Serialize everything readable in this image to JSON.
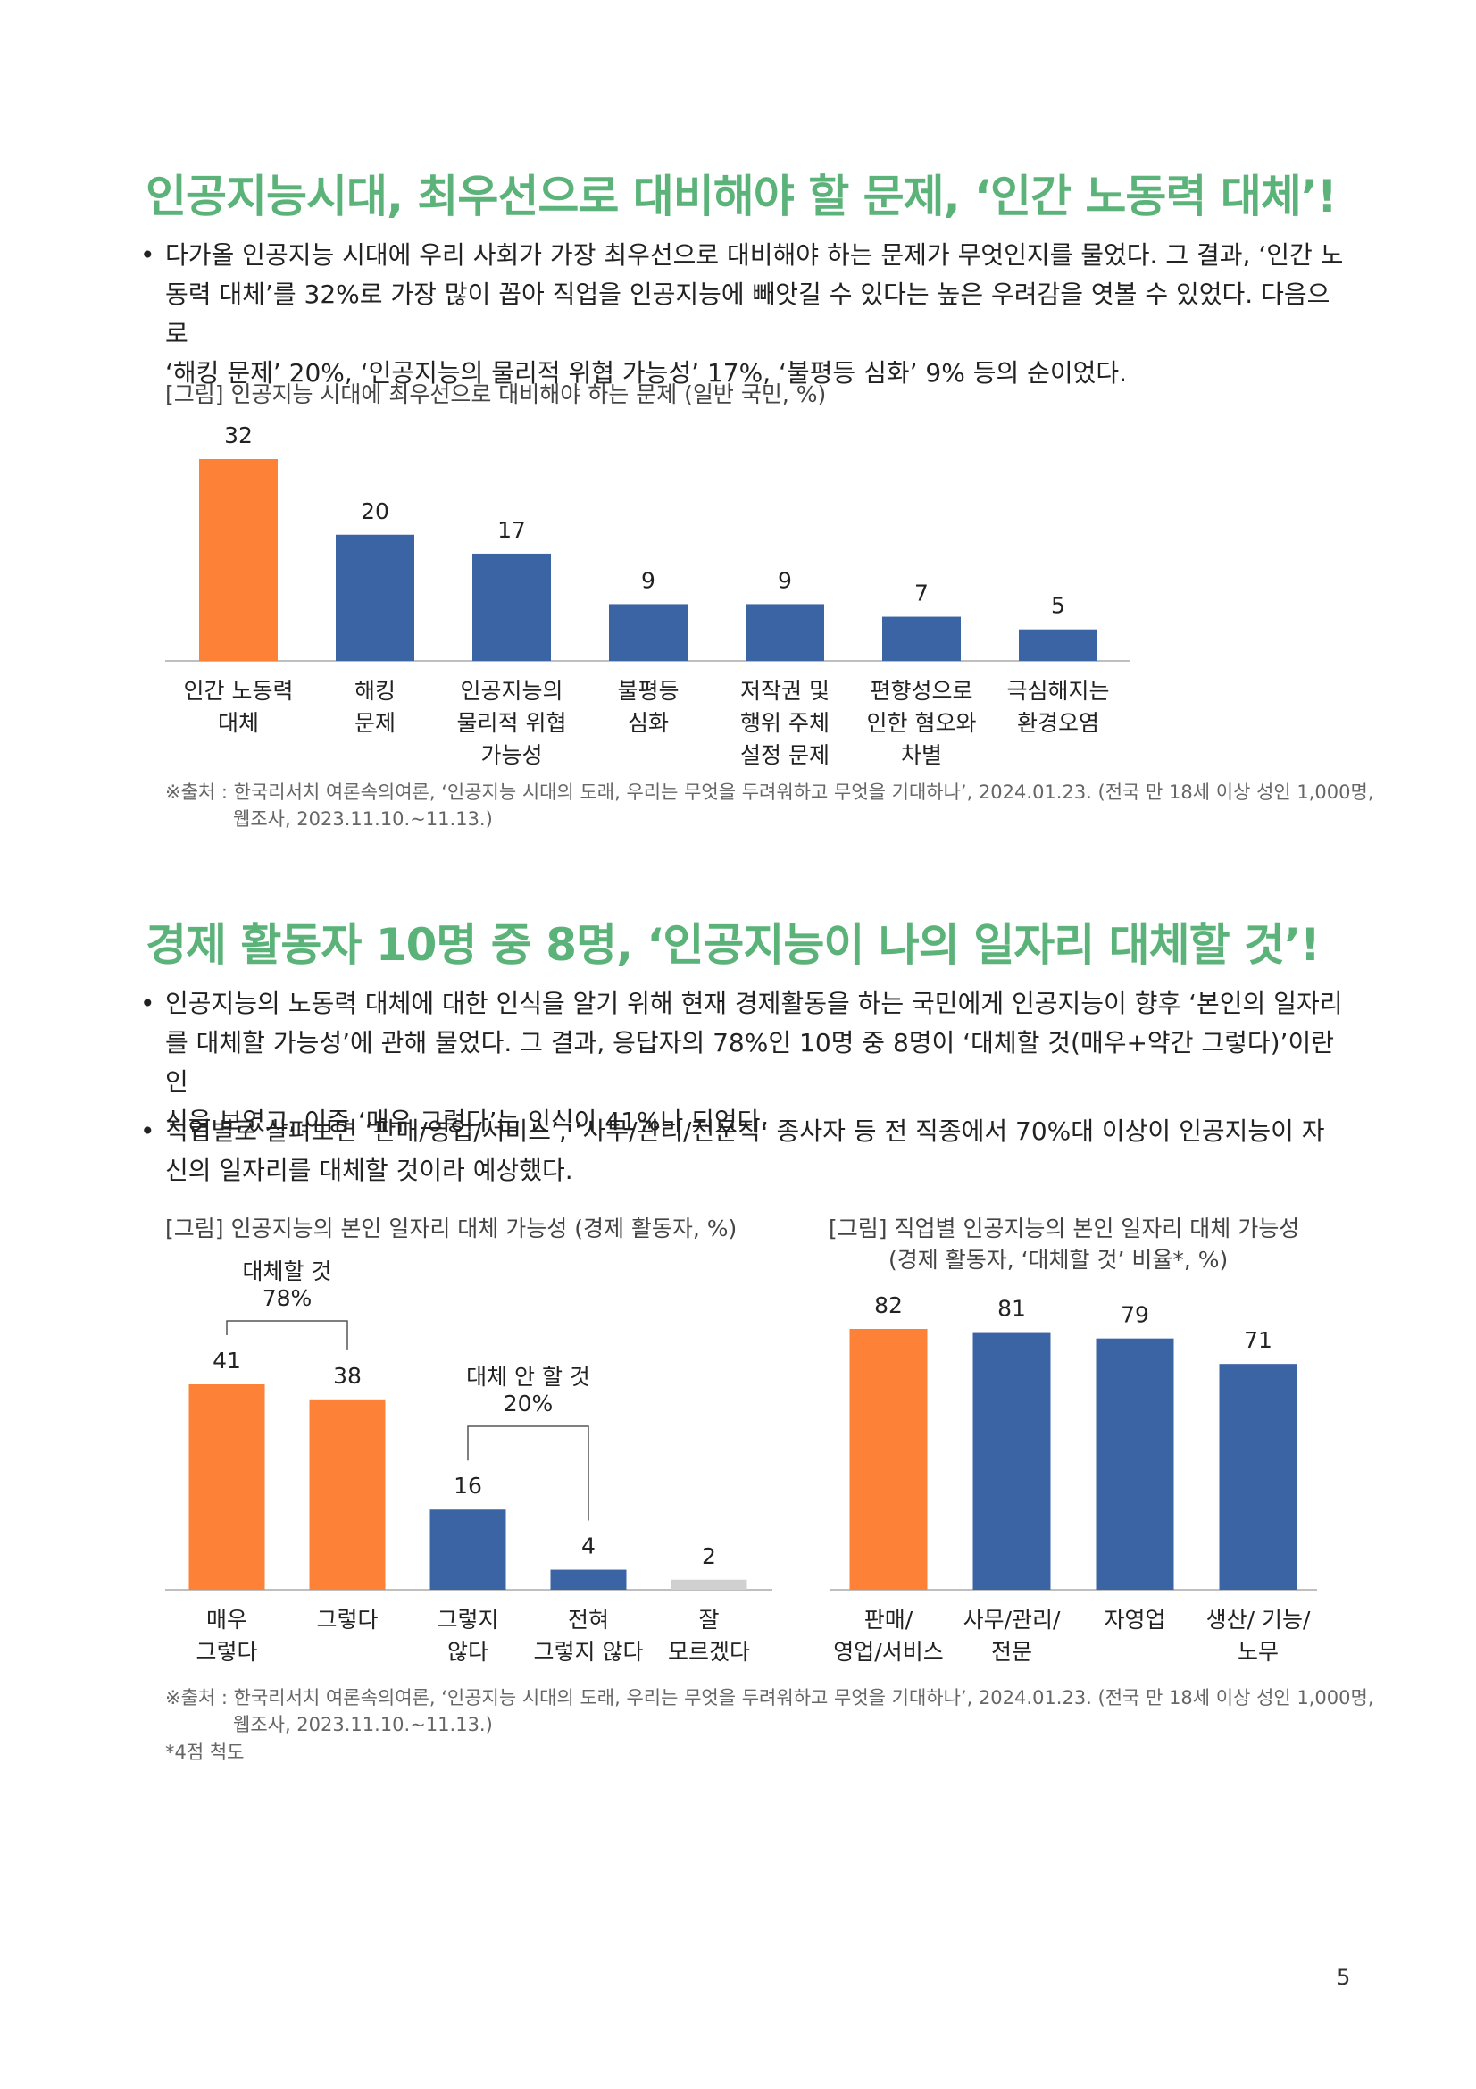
{
  "section1": {
    "title": "인공지능시대, 최우선으로 대비해야 할 문제, ‘인간 노동력 대체’!",
    "bullet_lines": [
      "다가올 인공지능 시대에 우리 사회가 가장 최우선으로 대비해야 하는 문제가 무엇인지를 물었다. 그 결과, ‘인간 노",
      "동력 대체’를 32%로 가장 많이 꼽아 직업을 인공지능에 빼앗길 수 있다는 높은 우려감을 엿볼 수 있었다. 다음으로",
      "‘해킹 문제’ 20%, ‘인공지능의 물리적 위협 가능성’ 17%, ‘불평등 심화’ 9% 등의 순이었다."
    ],
    "figure_caption": "[그림] 인공지능 시대에 최우선으로 대비해야 하는 문제 (일반 국민, %)",
    "source_line1": "※출처 : 한국리서치 여론속의여론, ‘인공지능 시대의 도래, 우리는 무엇을 두려워하고 무엇을 기대하나’, 2024.01.23. (전국 만 18세 이상 성인 1,000명,",
    "source_line2": "웹조사, 2023.11.10.~11.13.)"
  },
  "section2": {
    "title": "경제 활동자 10명 중 8명, ‘인공지능이 나의 일자리 대체할 것’!",
    "bullet1_lines": [
      "인공지능의 노동력 대체에 대한 인식을 알기 위해 현재 경제활동을 하는 국민에게 인공지능이 향후 ‘본인의 일자리",
      "를 대체할 가능성’에 관해 물었다. 그 결과, 응답자의 78%인 10명 중 8명이 ‘대체할 것(매우+약간 그렇다)’이란 인",
      "식을 보였고, 이중 ‘매우 그렇다’는 인식이 41%나 되었다."
    ],
    "bullet2_lines": [
      "직업별로 살펴보면 ‘판매/영업/서비스’, ‘사무/관리/전문직’ 종사자 등 전 직종에서 70%대 이상이 인공지능이 자",
      "신의 일자리를 대체할 것이라 예상했다."
    ],
    "figure_caption_left": "[그림] 인공지능의 본인 일자리 대체 가능성 (경제 활동자, %)",
    "figure_caption_right_line1": "[그림] 직업별 인공지능의 본인 일자리 대체 가능성",
    "figure_caption_right_line2": "(경제 활동자, ‘대체할 것’ 비율*, %)",
    "source_line1": "※출처 : 한국리서치 여론속의여론, ‘인공지능 시대의 도래, 우리는 무엇을 두려워하고 무엇을 기대하나’, 2024.01.23. (전국 만 18세 이상 성인 1,000명,",
    "source_line2": "웹조사, 2023.11.10.~11.13.)",
    "footnote": "*4점 척도"
  },
  "page_number": "5",
  "colors": {
    "orange": "#fd8136",
    "blue": "#3b64a4",
    "gray": "#d0d0d0",
    "title_green": "#5bb37a"
  },
  "chart_data": [
    {
      "type": "bar",
      "categories": [
        [
          "인간 노동력",
          "대체"
        ],
        [
          "해킹",
          "문제"
        ],
        [
          "인공지능의",
          "물리적 위협",
          "가능성"
        ],
        [
          "불평등",
          "심화"
        ],
        [
          "저작권 및",
          "행위 주체",
          "설정 문제"
        ],
        [
          "편향성으로",
          "인한 혐오와",
          "차별"
        ],
        [
          "극심해지는",
          "환경오염"
        ]
      ],
      "values": [
        32,
        20,
        17,
        9,
        9,
        7,
        5
      ],
      "bar_colors": [
        "#fd8136",
        "#3b64a4",
        "#3b64a4",
        "#3b64a4",
        "#3b64a4",
        "#3b64a4",
        "#3b64a4"
      ],
      "ylim": [
        0,
        32
      ]
    },
    {
      "type": "bar",
      "categories": [
        [
          "매우",
          "그렇다"
        ],
        [
          "그렇다"
        ],
        [
          "그렇지",
          "않다"
        ],
        [
          "전혀",
          "그렇지 않다"
        ],
        [
          "잘",
          "모르겠다"
        ]
      ],
      "values": [
        41,
        38,
        16,
        4,
        2
      ],
      "bar_colors": [
        "#fd8136",
        "#fd8136",
        "#3b64a4",
        "#3b64a4",
        "#d0d0d0"
      ],
      "ylim": [
        0,
        41
      ],
      "annotations": [
        {
          "label": [
            "대체할 것",
            "78%"
          ],
          "from": 0,
          "to": 1
        },
        {
          "label": [
            "대체 안 할 것",
            "20%"
          ],
          "from": 2,
          "to": 3
        }
      ]
    },
    {
      "type": "bar",
      "categories": [
        [
          "판매/",
          "영업/서비스"
        ],
        [
          "사무/관리/",
          "전문"
        ],
        [
          "자영업"
        ],
        [
          "생산/ 기능/",
          "노무"
        ]
      ],
      "values": [
        82,
        81,
        79,
        71
      ],
      "bar_colors": [
        "#fd8136",
        "#3b64a4",
        "#3b64a4",
        "#3b64a4"
      ],
      "ylim": [
        0,
        82
      ]
    }
  ]
}
